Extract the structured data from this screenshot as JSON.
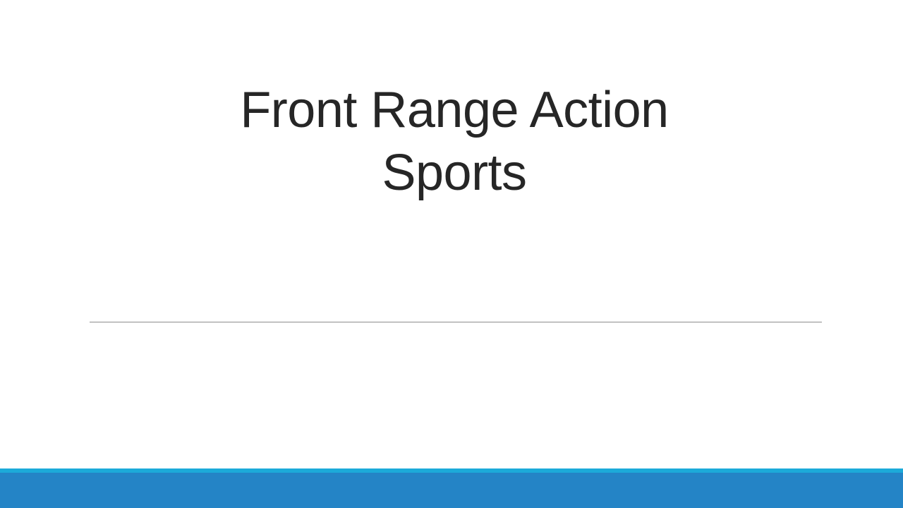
{
  "slide": {
    "title_lines": [
      "Front Range Action",
      "Sports"
    ]
  },
  "colors": {
    "title_text": "#262626",
    "divider": "#8c8c8c",
    "accent_light": "#1caad9",
    "accent_dark": "#2484c6"
  }
}
